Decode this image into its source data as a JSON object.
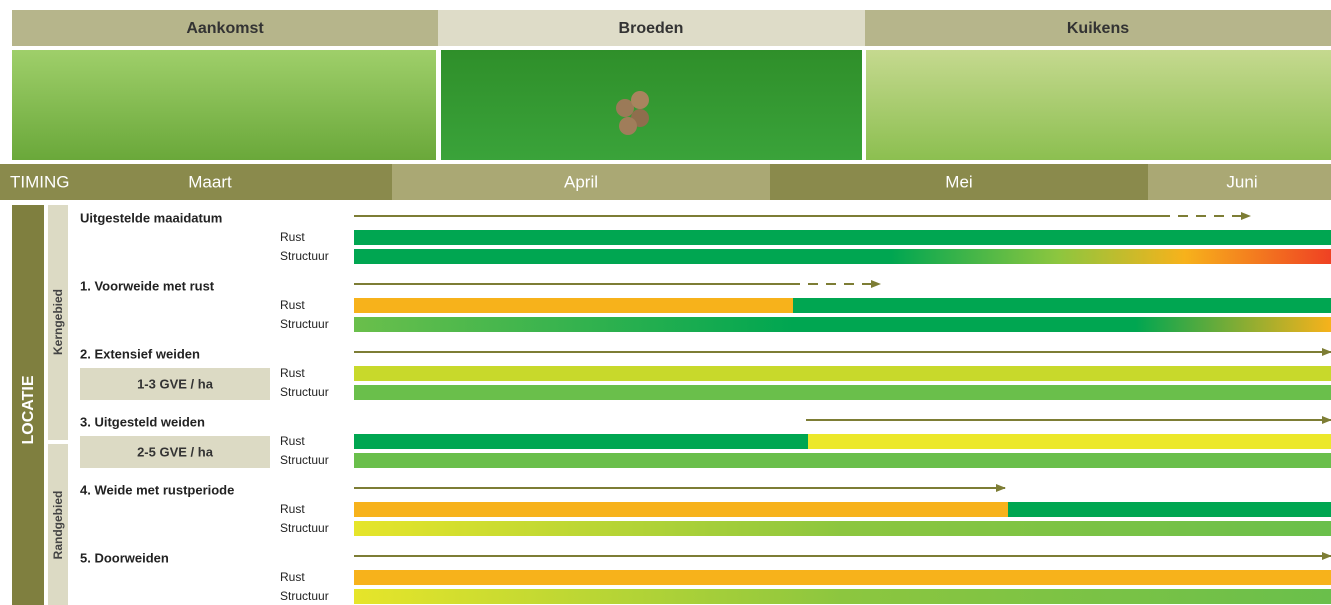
{
  "header": {
    "phases": [
      "Aankomst",
      "Broeden",
      "Kuikens"
    ]
  },
  "timing": {
    "label": "TIMING",
    "months": [
      "Maart",
      "April",
      "Mei",
      "Juni"
    ]
  },
  "side": {
    "label": "LOCATIE",
    "groups": [
      "Kerngebied",
      "Randgebied"
    ]
  },
  "rows": [
    {
      "title": "Uitgestelde maaidatum",
      "rust": "Rust",
      "structuur": "Structuur"
    },
    {
      "title": "1. Voorweide met rust",
      "rust": "Rust",
      "structuur": "Structuur"
    },
    {
      "title": "2. Extensief weiden",
      "note": "1-3 GVE / ha",
      "rust": "Rust",
      "structuur": "Structuur"
    },
    {
      "title": "3. Uitgesteld weiden",
      "note": "2-5 GVE / ha",
      "rust": "Rust",
      "structuur": "Structuur"
    },
    {
      "title": "4. Weide met rustperiode",
      "rust": "Rust",
      "structuur": "Structuur"
    },
    {
      "title": "5. Doorweiden",
      "rust": "Rust",
      "structuur": "Structuur"
    }
  ]
}
